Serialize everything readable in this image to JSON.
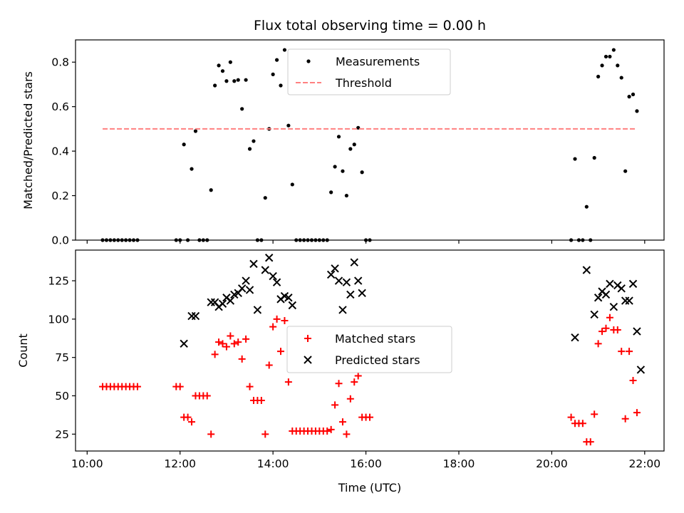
{
  "chart_data": [
    {
      "type": "scatter",
      "title": "Flux total observing time = 0.00 h",
      "xlabel": "",
      "ylabel": "Matched/Predicted stars",
      "ylim": [
        0,
        0.9
      ],
      "yticks": [
        0.0,
        0.2,
        0.4,
        0.6,
        0.8
      ],
      "ytick_labels": [
        "0.0",
        "0.2",
        "0.4",
        "0.6",
        "0.8"
      ],
      "legend_position": "upper-center",
      "grid": false,
      "series": [
        {
          "name": "Measurements",
          "marker": "dot",
          "color": "#000000",
          "points": [
            [
              "10:20",
              0
            ],
            [
              "10:25",
              0
            ],
            [
              "10:30",
              0
            ],
            [
              "10:35",
              0
            ],
            [
              "10:40",
              0
            ],
            [
              "10:45",
              0
            ],
            [
              "10:50",
              0
            ],
            [
              "10:55",
              0
            ],
            [
              "11:00",
              0
            ],
            [
              "11:05",
              0
            ],
            [
              "11:55",
              0
            ],
            [
              "12:00",
              0
            ],
            [
              "12:05",
              0.43
            ],
            [
              "12:10",
              0
            ],
            [
              "12:15",
              0.32
            ],
            [
              "12:20",
              0.49
            ],
            [
              "12:25",
              0
            ],
            [
              "12:30",
              0
            ],
            [
              "12:35",
              0
            ],
            [
              "12:40",
              0.225
            ],
            [
              "12:45",
              0.695
            ],
            [
              "12:50",
              0.785
            ],
            [
              "12:55",
              0.76
            ],
            [
              "13:00",
              0.715
            ],
            [
              "13:05",
              0.8
            ],
            [
              "13:10",
              0.715
            ],
            [
              "13:15",
              0.72
            ],
            [
              "13:20",
              0.59
            ],
            [
              "13:25",
              0.72
            ],
            [
              "13:30",
              0.41
            ],
            [
              "13:35",
              0.445
            ],
            [
              "13:40",
              0
            ],
            [
              "13:45",
              0
            ],
            [
              "13:50",
              0.19
            ],
            [
              "13:55",
              0.5
            ],
            [
              "14:00",
              0.745
            ],
            [
              "14:05",
              0.81
            ],
            [
              "14:10",
              0.695
            ],
            [
              "14:15",
              0.855
            ],
            [
              "14:20",
              0.515
            ],
            [
              "14:25",
              0.25
            ],
            [
              "14:30",
              0
            ],
            [
              "14:35",
              0
            ],
            [
              "14:40",
              0
            ],
            [
              "14:45",
              0
            ],
            [
              "14:50",
              0
            ],
            [
              "14:55",
              0
            ],
            [
              "15:00",
              0
            ],
            [
              "15:05",
              0
            ],
            [
              "15:10",
              0
            ],
            [
              "15:15",
              0.215
            ],
            [
              "15:20",
              0.33
            ],
            [
              "15:25",
              0.465
            ],
            [
              "15:30",
              0.31
            ],
            [
              "15:35",
              0.2
            ],
            [
              "15:40",
              0.41
            ],
            [
              "15:45",
              0.43
            ],
            [
              "15:50",
              0.505
            ],
            [
              "15:55",
              0.305
            ],
            [
              "16:00",
              0
            ],
            [
              "16:05",
              0
            ],
            [
              "20:25",
              0
            ],
            [
              "20:30",
              0.365
            ],
            [
              "20:35",
              0
            ],
            [
              "20:40",
              0
            ],
            [
              "20:45",
              0.15
            ],
            [
              "20:50",
              0
            ],
            [
              "20:55",
              0.37
            ],
            [
              "21:00",
              0.735
            ],
            [
              "21:05",
              0.785
            ],
            [
              "21:10",
              0.825
            ],
            [
              "21:15",
              0.825
            ],
            [
              "21:20",
              0.855
            ],
            [
              "21:25",
              0.785
            ],
            [
              "21:30",
              0.73
            ],
            [
              "21:35",
              0.31
            ],
            [
              "21:40",
              0.645
            ],
            [
              "21:45",
              0.655
            ],
            [
              "21:50",
              0.58
            ]
          ]
        },
        {
          "name": "Threshold",
          "marker": "dashed-line",
          "color": "#ff8080",
          "points": [
            [
              "10:20",
              0.5
            ],
            [
              "21:50",
              0.5
            ]
          ]
        }
      ]
    },
    {
      "type": "scatter",
      "title": "",
      "xlabel": "Time (UTC)",
      "ylabel": "Count",
      "ylim": [
        14,
        145
      ],
      "yticks": [
        25,
        50,
        75,
        100,
        125
      ],
      "ytick_labels": [
        "25",
        "50",
        "75",
        "100",
        "125"
      ],
      "xlim": [
        "09:45",
        "22:25"
      ],
      "xticks": [
        "10:00",
        "12:00",
        "14:00",
        "16:00",
        "18:00",
        "20:00",
        "22:00"
      ],
      "xtick_labels": [
        "10:00",
        "12:00",
        "14:00",
        "16:00",
        "18:00",
        "20:00",
        "22:00"
      ],
      "legend_position": "center",
      "grid": false,
      "series": [
        {
          "name": "Matched stars",
          "marker": "plus",
          "color": "#ff0000",
          "points": [
            [
              "10:20",
              56
            ],
            [
              "10:25",
              56
            ],
            [
              "10:30",
              56
            ],
            [
              "10:35",
              56
            ],
            [
              "10:40",
              56
            ],
            [
              "10:45",
              56
            ],
            [
              "10:50",
              56
            ],
            [
              "10:55",
              56
            ],
            [
              "11:00",
              56
            ],
            [
              "11:05",
              56
            ],
            [
              "11:55",
              56
            ],
            [
              "12:00",
              56
            ],
            [
              "12:05",
              36
            ],
            [
              "12:10",
              36
            ],
            [
              "12:15",
              33
            ],
            [
              "12:20",
              50
            ],
            [
              "12:25",
              50
            ],
            [
              "12:30",
              50
            ],
            [
              "12:35",
              50
            ],
            [
              "12:40",
              25
            ],
            [
              "12:45",
              77
            ],
            [
              "12:50",
              85
            ],
            [
              "12:55",
              84
            ],
            [
              "13:00",
              82
            ],
            [
              "13:05",
              89
            ],
            [
              "13:10",
              84
            ],
            [
              "13:15",
              85
            ],
            [
              "13:20",
              74
            ],
            [
              "13:25",
              87
            ],
            [
              "13:30",
              56
            ],
            [
              "13:35",
              47
            ],
            [
              "13:40",
              47
            ],
            [
              "13:45",
              47
            ],
            [
              "13:50",
              25
            ],
            [
              "13:55",
              70
            ],
            [
              "14:00",
              95
            ],
            [
              "14:05",
              100
            ],
            [
              "14:10",
              79
            ],
            [
              "14:15",
              99
            ],
            [
              "14:20",
              59
            ],
            [
              "14:25",
              27
            ],
            [
              "14:30",
              27
            ],
            [
              "14:35",
              27
            ],
            [
              "14:40",
              27
            ],
            [
              "14:45",
              27
            ],
            [
              "14:50",
              27
            ],
            [
              "14:55",
              27
            ],
            [
              "15:00",
              27
            ],
            [
              "15:05",
              27
            ],
            [
              "15:10",
              27
            ],
            [
              "15:15",
              28
            ],
            [
              "15:20",
              44
            ],
            [
              "15:25",
              58
            ],
            [
              "15:30",
              33
            ],
            [
              "15:35",
              25
            ],
            [
              "15:40",
              48
            ],
            [
              "15:45",
              59
            ],
            [
              "15:50",
              63
            ],
            [
              "15:55",
              36
            ],
            [
              "16:00",
              36
            ],
            [
              "16:05",
              36
            ],
            [
              "20:25",
              36
            ],
            [
              "20:30",
              32
            ],
            [
              "20:35",
              32
            ],
            [
              "20:40",
              32
            ],
            [
              "20:45",
              20
            ],
            [
              "20:50",
              20
            ],
            [
              "20:55",
              38
            ],
            [
              "21:00",
              84
            ],
            [
              "21:05",
              92
            ],
            [
              "21:10",
              94
            ],
            [
              "21:15",
              101
            ],
            [
              "21:20",
              93
            ],
            [
              "21:25",
              93
            ],
            [
              "21:30",
              79
            ],
            [
              "21:35",
              35
            ],
            [
              "21:40",
              79
            ],
            [
              "21:45",
              60
            ],
            [
              "21:50",
              39
            ]
          ]
        },
        {
          "name": "Predicted stars",
          "marker": "x",
          "color": "#000000",
          "points": [
            [
              "12:05",
              84
            ],
            [
              "12:15",
              102
            ],
            [
              "12:20",
              102
            ],
            [
              "12:40",
              111
            ],
            [
              "12:45",
              111
            ],
            [
              "12:50",
              108
            ],
            [
              "12:55",
              110
            ],
            [
              "13:00",
              114
            ],
            [
              "13:05",
              112
            ],
            [
              "13:10",
              116
            ],
            [
              "13:15",
              117
            ],
            [
              "13:20",
              120
            ],
            [
              "13:25",
              125
            ],
            [
              "13:30",
              119
            ],
            [
              "13:35",
              136
            ],
            [
              "13:40",
              106
            ],
            [
              "13:50",
              132
            ],
            [
              "13:55",
              140
            ],
            [
              "14:00",
              128
            ],
            [
              "14:05",
              124
            ],
            [
              "14:10",
              113
            ],
            [
              "14:15",
              115
            ],
            [
              "14:20",
              114
            ],
            [
              "14:25",
              109
            ],
            [
              "15:15",
              129
            ],
            [
              "15:20",
              133
            ],
            [
              "15:25",
              125
            ],
            [
              "15:30",
              106
            ],
            [
              "15:35",
              124
            ],
            [
              "15:40",
              116
            ],
            [
              "15:45",
              137
            ],
            [
              "15:50",
              125
            ],
            [
              "15:55",
              117
            ],
            [
              "20:30",
              88
            ],
            [
              "20:45",
              132
            ],
            [
              "20:55",
              103
            ],
            [
              "21:00",
              114
            ],
            [
              "21:05",
              118
            ],
            [
              "21:10",
              116
            ],
            [
              "21:15",
              123
            ],
            [
              "21:20",
              108
            ],
            [
              "21:25",
              122
            ],
            [
              "21:30",
              120
            ],
            [
              "21:35",
              112
            ],
            [
              "21:40",
              112
            ],
            [
              "21:45",
              123
            ],
            [
              "21:50",
              92
            ],
            [
              "21:55",
              67
            ]
          ]
        }
      ]
    }
  ]
}
